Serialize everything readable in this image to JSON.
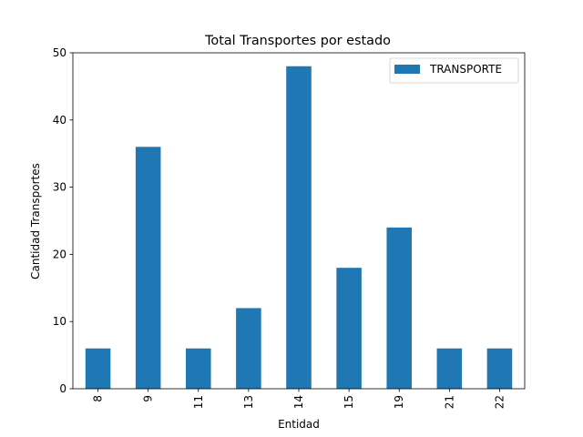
{
  "chart_data": {
    "type": "bar",
    "title": "Total Transportes por estado",
    "xlabel": "Entidad",
    "ylabel": "Cantidad Transportes",
    "categories": [
      "8",
      "9",
      "11",
      "13",
      "14",
      "15",
      "19",
      "21",
      "22"
    ],
    "series": [
      {
        "name": "TRANSPORTE",
        "values": [
          6,
          36,
          6,
          12,
          48,
          18,
          24,
          6,
          6
        ],
        "color": "#1f77b4"
      }
    ],
    "ylim": [
      0,
      50
    ],
    "yticks": [
      "0",
      "10",
      "20",
      "30",
      "40",
      "50"
    ],
    "grid": false,
    "legend_position": "top-right"
  }
}
